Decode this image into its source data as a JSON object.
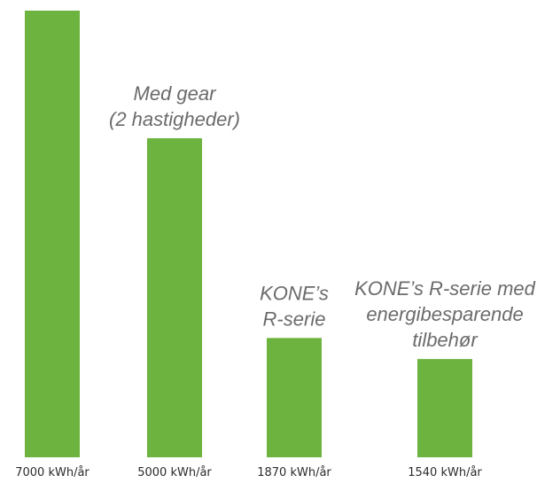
{
  "chart_data": {
    "type": "bar",
    "categories": [
      "",
      "Med gear (2 hastigheder)",
      "KONE’s R-serie",
      "KONE’s R-serie med energibesparende tilbehør"
    ],
    "values": [
      7000,
      5000,
      1870,
      1540
    ],
    "value_labels": [
      "7000 kWh/år",
      "5000 kWh/år",
      "1870 kWh/år",
      "1540 kWh/år"
    ],
    "bar_label_lines": [
      [],
      [
        "Med gear",
        "(2 hastigheder)"
      ],
      [
        "KONE’s",
        "R-serie"
      ],
      [
        "KONE’s R-serie med",
        "energibesparende",
        "tilbehør"
      ]
    ],
    "colors": {
      "bar": "#6db33f"
    },
    "title": "",
    "xlabel": "",
    "ylabel": "",
    "ylim": [
      0,
      7000
    ],
    "grid": false,
    "legend": "none"
  }
}
